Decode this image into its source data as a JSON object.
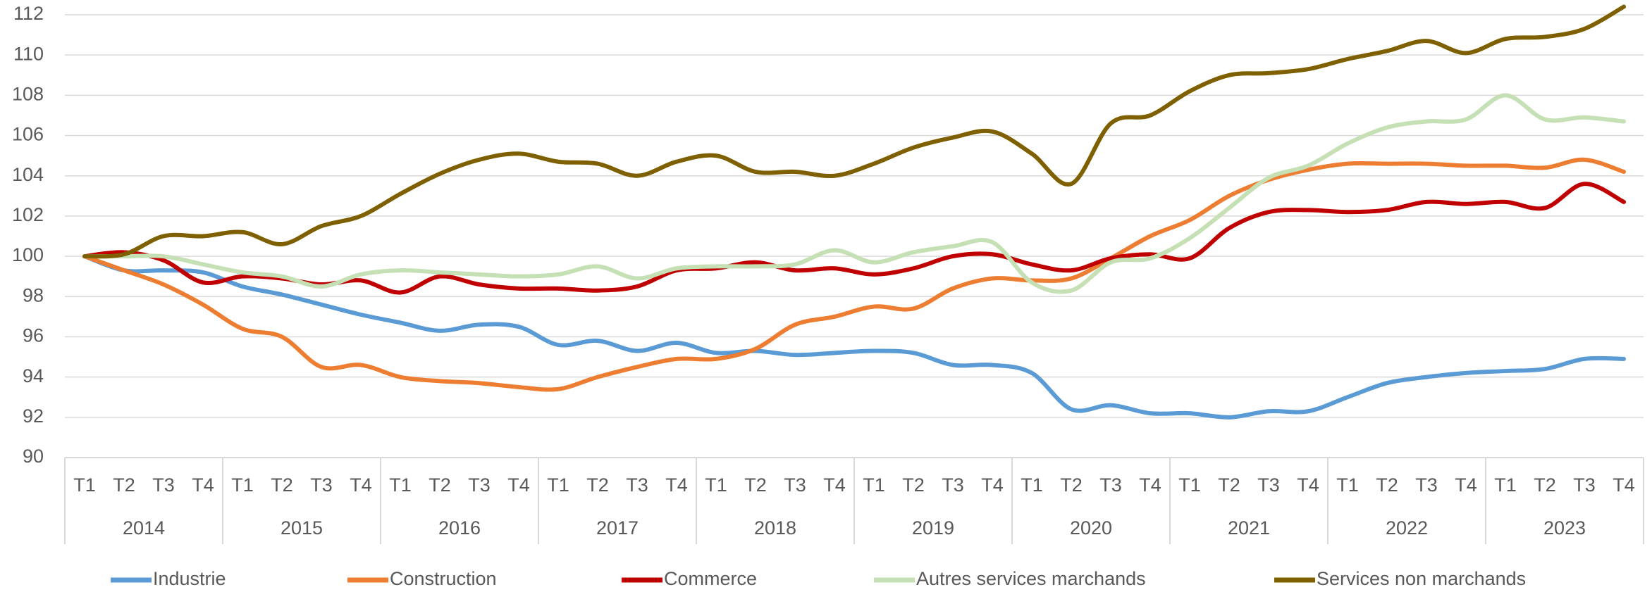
{
  "chart_data": {
    "type": "line",
    "categories": [
      "T1",
      "T2",
      "T3",
      "T4",
      "T1",
      "T2",
      "T3",
      "T4",
      "T1",
      "T2",
      "T3",
      "T4",
      "T1",
      "T2",
      "T3",
      "T4",
      "T1",
      "T2",
      "T3",
      "T4",
      "T1",
      "T2",
      "T3",
      "T4",
      "T1",
      "T2",
      "T3",
      "T4",
      "T1",
      "T2",
      "T3",
      "T4",
      "T1",
      "T2",
      "T3",
      "T4",
      "T1",
      "T2",
      "T3",
      "T4"
    ],
    "groups": [
      "2014",
      "2015",
      "2016",
      "2017",
      "2018",
      "2019",
      "2020",
      "2021",
      "2022",
      "2023"
    ],
    "series": [
      {
        "name": "Industrie",
        "color": "#5b9bd5",
        "values": [
          100,
          99.3,
          99.3,
          99.2,
          98.5,
          98.1,
          97.6,
          97.1,
          96.7,
          96.3,
          96.6,
          96.5,
          95.6,
          95.8,
          95.3,
          95.7,
          95.2,
          95.3,
          95.1,
          95.2,
          95.3,
          95.2,
          94.6,
          94.6,
          94.2,
          92.4,
          92.6,
          92.2,
          92.2,
          92.0,
          92.3,
          92.3,
          93.0,
          93.7,
          94.0,
          94.2,
          94.3,
          94.4,
          94.9,
          94.9
        ]
      },
      {
        "name": "Construction",
        "color": "#ed7d31",
        "values": [
          100,
          99.3,
          98.6,
          97.6,
          96.4,
          96.0,
          94.5,
          94.6,
          94.0,
          93.8,
          93.7,
          93.5,
          93.4,
          94.0,
          94.5,
          94.9,
          94.9,
          95.4,
          96.6,
          97.0,
          97.5,
          97.4,
          98.4,
          98.9,
          98.8,
          98.9,
          99.9,
          101.0,
          101.8,
          103.0,
          103.8,
          104.3,
          104.6,
          104.6,
          104.6,
          104.5,
          104.5,
          104.4,
          104.8,
          104.2
        ]
      },
      {
        "name": "Commerce",
        "color": "#c00000",
        "values": [
          100,
          100.2,
          99.8,
          98.7,
          99.0,
          98.9,
          98.6,
          98.8,
          98.2,
          99.0,
          98.6,
          98.4,
          98.4,
          98.3,
          98.5,
          99.3,
          99.4,
          99.7,
          99.3,
          99.4,
          99.1,
          99.4,
          100.0,
          100.1,
          99.6,
          99.3,
          99.9,
          100.1,
          99.9,
          101.4,
          102.2,
          102.3,
          102.2,
          102.3,
          102.7,
          102.6,
          102.7,
          102.4,
          103.6,
          102.7
        ]
      },
      {
        "name": "Autres services marchands",
        "color": "#c5e0b4",
        "values": [
          100,
          100.0,
          100.0,
          99.6,
          99.2,
          99.0,
          98.5,
          99.1,
          99.3,
          99.2,
          99.1,
          99.0,
          99.1,
          99.5,
          98.9,
          99.4,
          99.5,
          99.5,
          99.6,
          100.3,
          99.7,
          100.2,
          100.5,
          100.7,
          98.7,
          98.3,
          99.7,
          99.9,
          100.9,
          102.4,
          103.9,
          104.5,
          105.6,
          106.4,
          106.7,
          106.8,
          108.0,
          106.8,
          106.9,
          106.7
        ]
      },
      {
        "name": "Services non marchands",
        "color": "#7f6000",
        "values": [
          100,
          100.1,
          101.0,
          101.0,
          101.2,
          100.6,
          101.5,
          102.0,
          103.1,
          104.1,
          104.8,
          105.1,
          104.7,
          104.6,
          104.0,
          104.7,
          105.0,
          104.2,
          104.2,
          104.0,
          104.6,
          105.4,
          105.9,
          106.2,
          105.1,
          103.6,
          106.6,
          107.0,
          108.2,
          109.0,
          109.1,
          109.3,
          109.8,
          110.2,
          110.7,
          110.1,
          110.8,
          110.9,
          111.3,
          112.4
        ]
      }
    ],
    "ylim": [
      90,
      112
    ],
    "yticks": [
      90,
      92,
      94,
      96,
      98,
      100,
      102,
      104,
      106,
      108,
      110,
      112
    ],
    "grid": true,
    "legend": "bottom"
  }
}
